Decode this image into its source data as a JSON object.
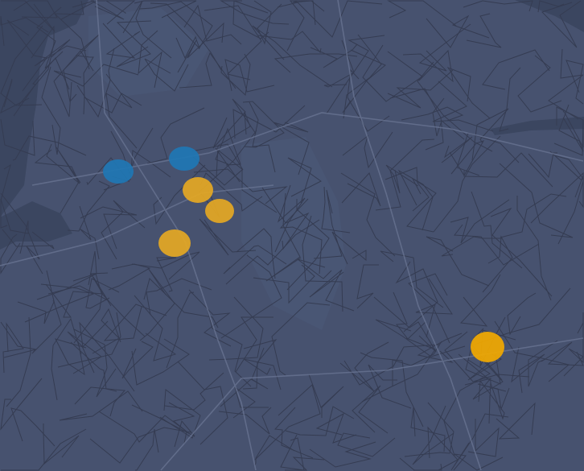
{
  "map": {
    "land_color": "#47526f",
    "sea_color": "#3b4660",
    "upland_color": "#4a5775",
    "road_color": "#353c52",
    "motorway_color": "#6c7896",
    "markers": [
      {
        "category": "blue",
        "color": "#1f77b4"
      },
      {
        "category": "blue",
        "color": "#1f77b4"
      },
      {
        "category": "yellow",
        "color": "#e5a823"
      },
      {
        "category": "yellow",
        "color": "#e5a823"
      },
      {
        "category": "yellow",
        "color": "#e5a823"
      },
      {
        "category": "orange",
        "color": "#f2a900"
      }
    ]
  }
}
